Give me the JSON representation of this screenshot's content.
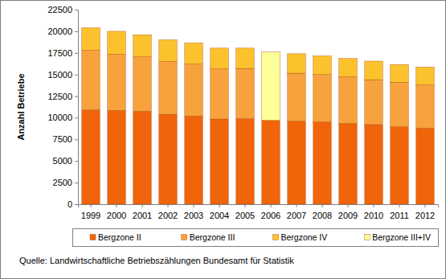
{
  "chart_data": {
    "type": "bar",
    "stacked": true,
    "y_label": "Anzahl Betriebe",
    "source": "Quelle: Landwirtschaftliche Betriebszählungen Bundesamt für Statistik",
    "categories": [
      "1999",
      "2000",
      "2001",
      "2002",
      "2003",
      "2004",
      "2005",
      "2006",
      "2007",
      "2008",
      "2009",
      "2010",
      "2011",
      "2012"
    ],
    "series": [
      {
        "name": "Bergzone II",
        "color": "#f0640a",
        "values": [
          10900,
          10850,
          10750,
          10400,
          10200,
          9850,
          9900,
          9700,
          9600,
          9500,
          9350,
          9200,
          8950,
          8800
        ]
      },
      {
        "name": "Bergzone III",
        "color": "#f7a23c",
        "values": [
          6900,
          6500,
          6300,
          6100,
          6000,
          5800,
          5800,
          null,
          5550,
          5500,
          5400,
          5200,
          5150,
          5000
        ]
      },
      {
        "name": "Bergzone IV",
        "color": "#fcc22e",
        "values": [
          2600,
          2650,
          2550,
          2500,
          2450,
          2400,
          2350,
          null,
          2250,
          2150,
          2100,
          2150,
          2050,
          2050
        ]
      },
      {
        "name": "Bergzone III+IV",
        "color": "#ffff99",
        "values": [
          null,
          null,
          null,
          null,
          null,
          null,
          null,
          7900,
          null,
          null,
          null,
          null,
          null,
          null
        ]
      }
    ],
    "ylim": [
      0,
      22500
    ],
    "yticks": [
      0,
      2500,
      5000,
      7500,
      10000,
      12500,
      15000,
      17500,
      20000,
      22500
    ],
    "grid": false,
    "legend": "bottom"
  }
}
